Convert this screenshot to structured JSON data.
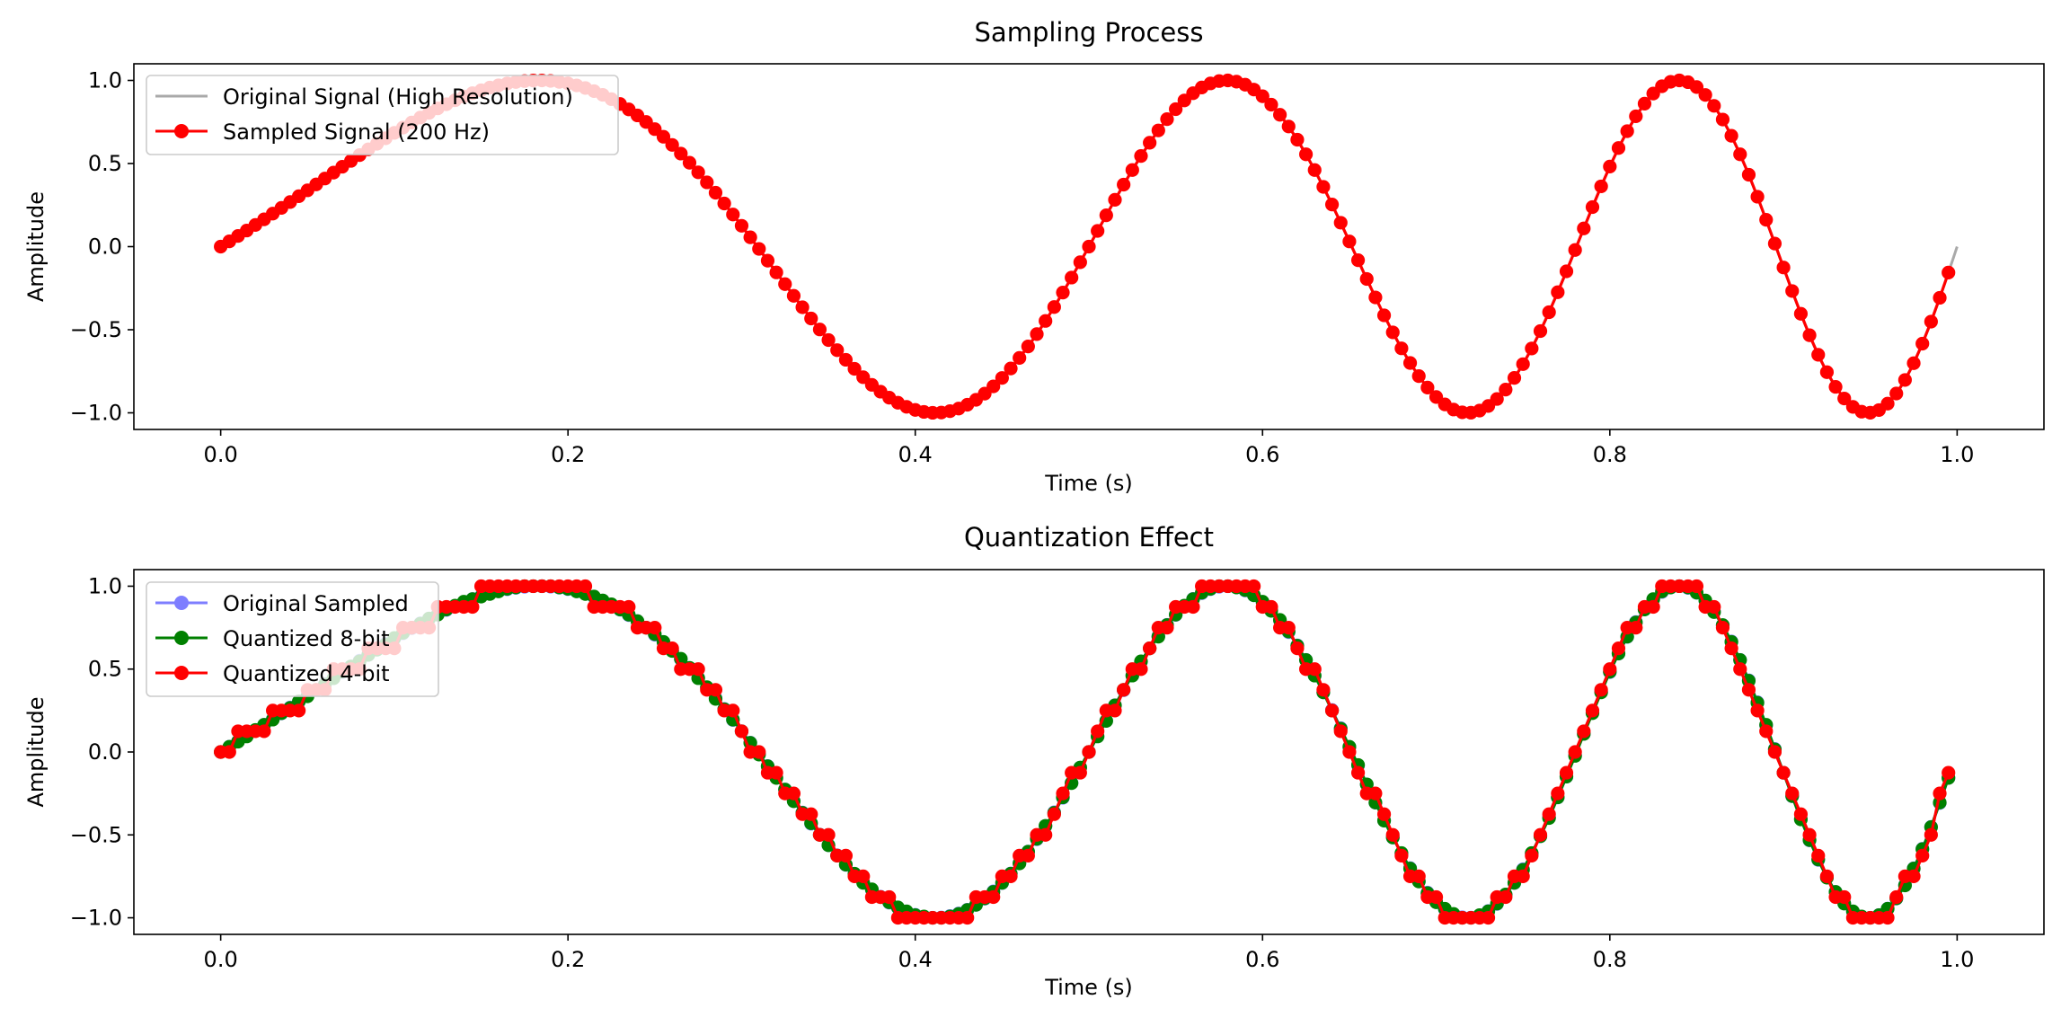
{
  "chart_data": [
    {
      "type": "line",
      "title": "Sampling Process",
      "xlabel": "Time (s)",
      "ylabel": "Amplitude",
      "xlim": [
        -0.05,
        1.05
      ],
      "ylim": [
        -1.1,
        1.1
      ],
      "xticks": [
        0.0,
        0.2,
        0.4,
        0.6,
        0.8,
        1.0
      ],
      "xtick_labels": [
        "0.0",
        "0.2",
        "0.4",
        "0.6",
        "0.8",
        "1.0"
      ],
      "yticks": [
        1.0,
        0.5,
        0.0,
        -0.5,
        -1.0
      ],
      "ytick_labels": [
        "1.0",
        "0.5",
        "0.0",
        "−0.5",
        "−1.0"
      ],
      "grid": false,
      "legend_position": "top-left",
      "signal": {
        "formula": "sin(2*pi*(t + 2*t^2))",
        "t_start": 0.0,
        "t_end": 0.995,
        "step": 0.005
      },
      "series": [
        {
          "name": "Original Signal (High Resolution)",
          "color": "#a9a9a9",
          "style": "line",
          "t_start": 0.0,
          "t_end": 1.0
        },
        {
          "name": "Sampled Signal (200 Hz)",
          "color": "#ff0000",
          "style": "line+markers",
          "quantize_bits": null
        }
      ]
    },
    {
      "type": "line",
      "title": "Quantization Effect",
      "xlabel": "Time (s)",
      "ylabel": "Amplitude",
      "xlim": [
        -0.05,
        1.05
      ],
      "ylim": [
        -1.1,
        1.1
      ],
      "xticks": [
        0.0,
        0.2,
        0.4,
        0.6,
        0.8,
        1.0
      ],
      "xtick_labels": [
        "0.0",
        "0.2",
        "0.4",
        "0.6",
        "0.8",
        "1.0"
      ],
      "yticks": [
        1.0,
        0.5,
        0.0,
        -0.5,
        -1.0
      ],
      "ytick_labels": [
        "1.0",
        "0.5",
        "0.0",
        "−0.5",
        "−1.0"
      ],
      "grid": false,
      "legend_position": "top-left",
      "signal": {
        "formula": "sin(2*pi*(t + 2*t^2))",
        "t_start": 0.0,
        "t_end": 0.995,
        "step": 0.005
      },
      "series": [
        {
          "name": "Original Sampled",
          "color": "#0000ff",
          "style": "line+markers",
          "alpha": 0.5,
          "quantize_bits": null
        },
        {
          "name": "Quantized 8-bit",
          "color": "#008000",
          "style": "line+markers",
          "quantize_bits": 8
        },
        {
          "name": "Quantized 4-bit",
          "color": "#ff0000",
          "style": "line+markers",
          "quantize_bits": 4
        }
      ]
    }
  ]
}
